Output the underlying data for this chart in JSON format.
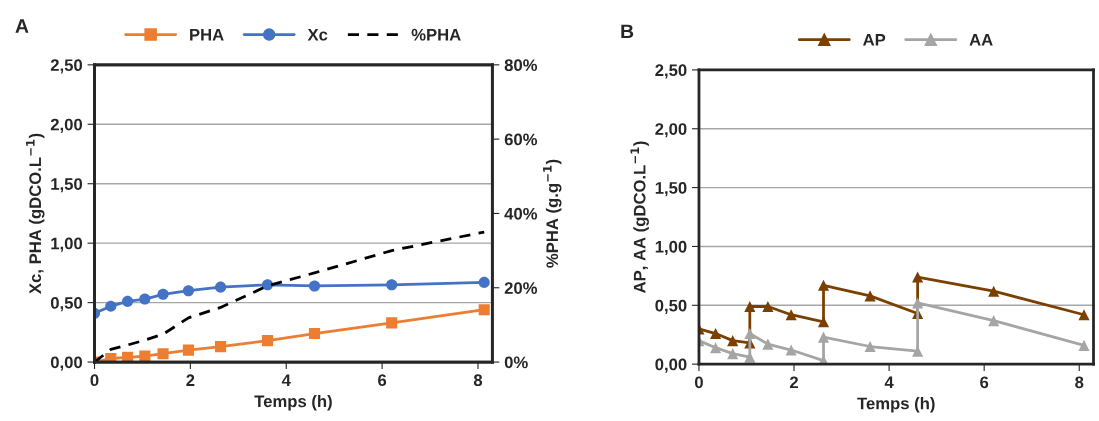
{
  "chart_data": [
    {
      "type": "line",
      "title": "A",
      "xlabel": "Temps (h)",
      "ylabel": "Xc, PHA (gDCO.L$^{−1}$)",
      "y2label": "%PHA (g.g$^{−1}$)",
      "legend": "top",
      "grid": "y",
      "xlim": [
        0,
        8.3
      ],
      "xticks": [
        0,
        2,
        4,
        6,
        8
      ],
      "ylim": [
        0,
        2.5
      ],
      "yticks": [
        {
          "value": 0,
          "label": "0,00"
        },
        {
          "value": 0.5,
          "label": "0,50"
        },
        {
          "value": 1,
          "label": "1,00"
        },
        {
          "value": 1.5,
          "label": "1,50"
        },
        {
          "value": 2,
          "label": "2,00"
        },
        {
          "value": 2.5,
          "label": "2,50"
        }
      ],
      "y2lim": [
        0,
        80
      ],
      "y2ticks": [
        {
          "value": 0,
          "label": "0%"
        },
        {
          "value": 20,
          "label": "20%"
        },
        {
          "value": 40,
          "label": "40%"
        },
        {
          "value": 60,
          "label": "60%"
        },
        {
          "value": 80,
          "label": "80%"
        }
      ],
      "series": [
        {
          "name": "PHA",
          "color": "#ed7d31",
          "marker": "square",
          "line_style": "solid",
          "x": [
            0,
            0.34,
            0.69,
            1.05,
            1.43,
            1.96,
            2.63,
            3.61,
            4.59,
            6.2,
            8.13
          ],
          "values": [
            0.0,
            0.03,
            0.04,
            0.05,
            0.07,
            0.1,
            0.13,
            0.18,
            0.24,
            0.33,
            0.44
          ]
        },
        {
          "name": "Xc",
          "color": "#4472c4",
          "marker": "circle",
          "line_style": "solid",
          "x": [
            0,
            0.34,
            0.69,
            1.05,
            1.43,
            1.96,
            2.63,
            3.61,
            4.59,
            6.2,
            8.13
          ],
          "values": [
            0.41,
            0.47,
            0.51,
            0.53,
            0.57,
            0.6,
            0.63,
            0.65,
            0.64,
            0.65,
            0.67
          ]
        },
        {
          "name": "%PHA",
          "color": "#000000",
          "marker": "none",
          "line_style": "dashed",
          "axis": "y2",
          "x": [
            0,
            0.34,
            0.69,
            1.05,
            1.43,
            1.96,
            2.63,
            3.61,
            4.59,
            6.2,
            8.13
          ],
          "values": [
            0,
            3.4,
            4.6,
            5.9,
            7.5,
            11.9,
            14.7,
            20.5,
            24,
            30,
            35
          ]
        }
      ]
    },
    {
      "type": "line",
      "title": "B",
      "xlabel": "Temps (h)",
      "ylabel": "AP, AA (gDCO.L$^{−1}$)",
      "legend": "top",
      "grid": "y",
      "marker": "triangle",
      "xlim": [
        0,
        8.3
      ],
      "xticks": [
        0,
        2,
        4,
        6,
        8
      ],
      "ylim": [
        0,
        2.5
      ],
      "yticks": [
        {
          "value": 0,
          "label": "0,00"
        },
        {
          "value": 0.5,
          "label": "0,50"
        },
        {
          "value": 1,
          "label": "1,00"
        },
        {
          "value": 1.5,
          "label": "1,50"
        },
        {
          "value": 2,
          "label": "2,00"
        },
        {
          "value": 2.5,
          "label": "2,50"
        }
      ],
      "series": [
        {
          "name": "AP",
          "color": "#7b3f00",
          "x": [
            0,
            0.35,
            0.71,
            1.07,
            1.07,
            1.45,
            1.94,
            2.62,
            2.62,
            3.6,
            4.6,
            4.6,
            6.2,
            8.1
          ],
          "values": [
            0.3,
            0.26,
            0.2,
            0.18,
            0.49,
            0.49,
            0.42,
            0.36,
            0.67,
            0.58,
            0.43,
            0.74,
            0.62,
            0.42
          ]
        },
        {
          "name": "AA",
          "color": "#a5a5a5",
          "x": [
            0,
            0.35,
            0.71,
            1.07,
            1.07,
            1.45,
            1.94,
            2.62,
            2.62,
            3.6,
            4.6,
            4.6,
            6.2,
            8.1
          ],
          "values": [
            0.2,
            0.14,
            0.09,
            0.06,
            0.26,
            0.17,
            0.12,
            0.03,
            0.23,
            0.15,
            0.11,
            0.52,
            0.37,
            0.16
          ]
        }
      ]
    }
  ]
}
